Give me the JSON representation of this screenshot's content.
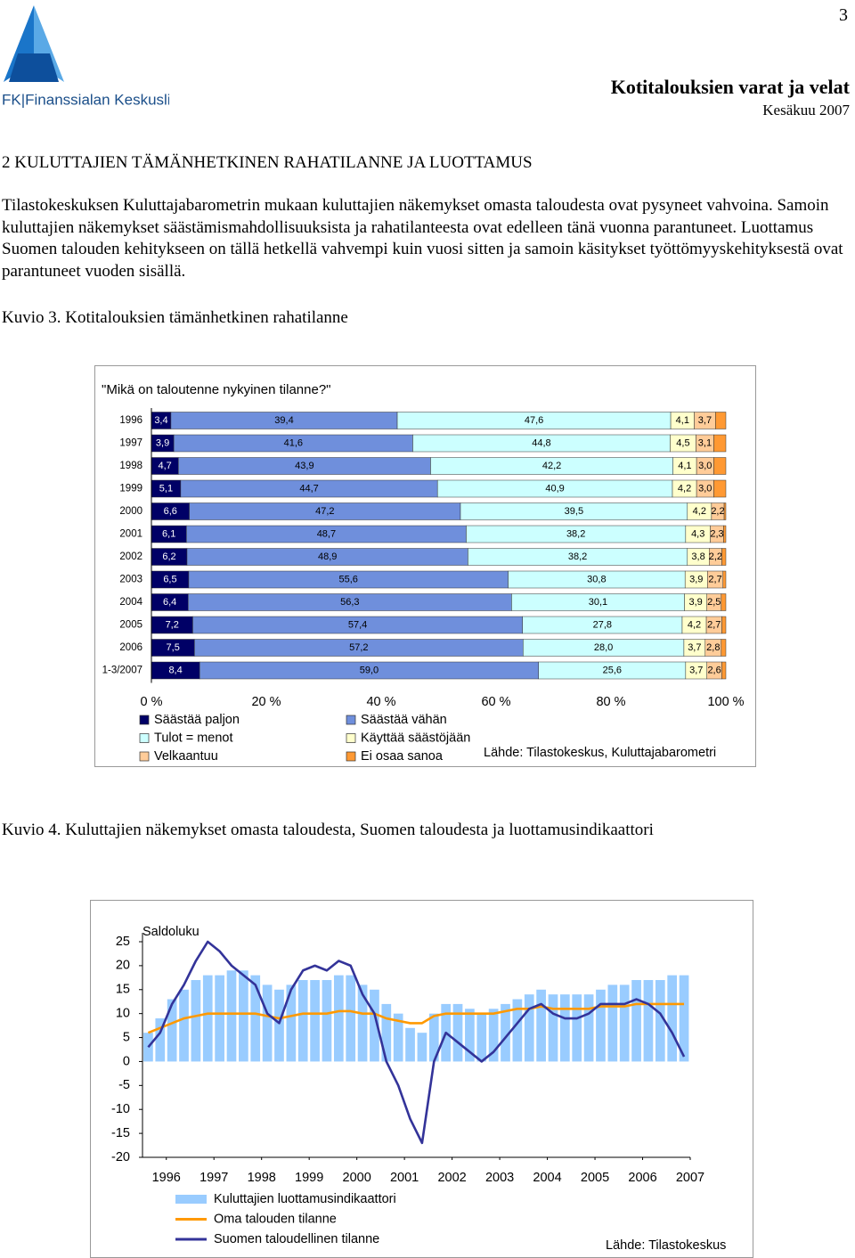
{
  "header": {
    "logo": "FK|Finanssialan Keskusliitto",
    "page_number": "3",
    "title": "Kotitalouksien varat ja velat",
    "date": "Kesäkuu 2007"
  },
  "section_heading": "2 KULUTTAJIEN TÄMÄNHETKINEN RAHATILANNE JA LUOTTAMUS",
  "paragraph": "Tilastokeskuksen Kuluttajabarometrin mukaan kuluttajien näkemykset omasta taloudesta ovat pysyneet vahvoina. Samoin kuluttajien näkemykset säästämismahdollisuuksista ja rahatilanteesta ovat edelleen tänä vuonna parantuneet. Luottamus Suomen talouden kehitykseen on tällä hetkellä vahvempi kuin vuosi sitten ja samoin käsitykset työttömyyskehityksestä ovat parantuneet vuoden sisällä.",
  "figure_captions": [
    "Kuvio 3. Kotitalouksien tämänhetkinen rahatilanne",
    "Kuvio 4. Kuluttajien näkemykset omasta taloudesta, Suomen taloudesta ja luottamusindikaattori"
  ],
  "chart_data": [
    {
      "type": "bar",
      "orientation": "horizontal",
      "stacked": true,
      "title": "\"Mikä on taloutenne nykyinen tilanne?\"",
      "categories": [
        "1996",
        "1997",
        "1998",
        "1999",
        "2000",
        "2001",
        "2002",
        "2003",
        "2004",
        "2005",
        "2006",
        "1-3/2007"
      ],
      "series": [
        {
          "name": "Säästää paljon",
          "color": "#000066",
          "values": [
            3.4,
            3.9,
            4.7,
            5.1,
            6.6,
            6.1,
            6.2,
            6.5,
            6.4,
            7.2,
            7.5,
            8.4
          ],
          "value_labels": [
            "3,4",
            "3,9",
            "4,7",
            "5,1",
            "6,6",
            "6,1",
            "6,2",
            "6,5",
            "6,4",
            "7,2",
            "7,5",
            "8,4"
          ]
        },
        {
          "name": "Säästää vähän",
          "color": "#6f8fdc",
          "values": [
            39.4,
            41.6,
            43.9,
            44.7,
            47.2,
            48.7,
            48.9,
            55.6,
            56.3,
            57.4,
            57.2,
            59.0
          ],
          "value_labels": [
            "39,4",
            "41,6",
            "43,9",
            "44,7",
            "47,2",
            "48,7",
            "48,9",
            "55,6",
            "56,3",
            "57,4",
            "57,2",
            "59,0"
          ]
        },
        {
          "name": "Tulot = menot",
          "color": "#ccffff",
          "values": [
            47.6,
            44.8,
            42.2,
            40.9,
            39.5,
            38.2,
            38.2,
            30.8,
            30.1,
            27.8,
            28.0,
            25.6
          ],
          "value_labels": [
            "47,6",
            "44,8",
            "42,2",
            "40,9",
            "39,5",
            "38,2",
            "38,2",
            "30,8",
            "30,1",
            "27,8",
            "28,0",
            "25,6"
          ]
        },
        {
          "name": "Käyttää säästöjään",
          "color": "#ffffcc",
          "values": [
            4.1,
            4.5,
            4.1,
            4.2,
            4.2,
            4.3,
            3.8,
            3.9,
            3.9,
            4.2,
            3.7,
            3.7
          ],
          "value_labels": [
            "4,1",
            "4,5",
            "4,1",
            "4,2",
            "4,2",
            "4,3",
            "3,8",
            "3,9",
            "3,9",
            "4,2",
            "3,7",
            "3,7"
          ]
        },
        {
          "name": "Velkaantuu",
          "color": "#ffcc99",
          "values": [
            3.7,
            3.1,
            3.0,
            3.0,
            2.2,
            2.3,
            2.2,
            2.7,
            2.5,
            2.7,
            2.8,
            2.6
          ],
          "value_labels": [
            "3,7",
            "3,1",
            "3,0",
            "3,0",
            "2,2",
            "2,3",
            "2,2",
            "2,7",
            "2,5",
            "2,7",
            "2,8",
            "2,6"
          ]
        },
        {
          "name": "Ei osaa sanoa",
          "color": "#ff9933",
          "values": [
            1.8,
            2.1,
            2.1,
            2.1,
            0.3,
            0.4,
            0.7,
            0.5,
            0.8,
            0.7,
            0.8,
            0.7
          ]
        }
      ],
      "xlim": [
        0,
        100
      ],
      "xticks": [
        {
          "value": 0,
          "label": "0 %"
        },
        {
          "value": 20,
          "label": "20 %"
        },
        {
          "value": 40,
          "label": "40 %"
        },
        {
          "value": 60,
          "label": "60 %"
        },
        {
          "value": 80,
          "label": "80 %"
        },
        {
          "value": 100,
          "label": "100 %"
        }
      ],
      "source": "Lähde: Tilastokeskus, Kuluttajabarometri"
    },
    {
      "type": "bar-line",
      "ylabel": "Saldoluku",
      "x": [
        1996,
        1996.25,
        1996.5,
        1996.75,
        1997,
        1997.25,
        1997.5,
        1997.75,
        1998,
        1998.25,
        1998.5,
        1998.75,
        1999,
        1999.25,
        1999.5,
        1999.75,
        2000,
        2000.25,
        2000.5,
        2000.75,
        2001,
        2001.25,
        2001.5,
        2001.75,
        2002,
        2002.25,
        2002.5,
        2002.75,
        2003,
        2003.25,
        2003.5,
        2003.75,
        2004,
        2004.25,
        2004.5,
        2004.75,
        2005,
        2005.25,
        2005.5,
        2005.75,
        2006,
        2006.25,
        2006.5,
        2006.75,
        2007,
        2007.25
      ],
      "series": [
        {
          "name": "Kuluttajien luottamusindikaattori",
          "type": "bar",
          "color": "#99ccff",
          "values": [
            6,
            9,
            13,
            15,
            17,
            18,
            18,
            19,
            19,
            18,
            16,
            15,
            16,
            17,
            17,
            17,
            18,
            18,
            16,
            15,
            12,
            10,
            7,
            6,
            10,
            12,
            12,
            11,
            10,
            11,
            12,
            13,
            14,
            15,
            14,
            14,
            14,
            14,
            15,
            16,
            16,
            17,
            17,
            17,
            18,
            18
          ]
        },
        {
          "name": "Oma talouden tilanne",
          "type": "line",
          "color": "#ff9900",
          "values": [
            6,
            7,
            8,
            9,
            9.5,
            10,
            10,
            10,
            10,
            10,
            9.5,
            9,
            9.5,
            10,
            10,
            10,
            10.5,
            10.5,
            10,
            10,
            9,
            8.5,
            8,
            8,
            9.5,
            10,
            10,
            10,
            10,
            10,
            10.5,
            11,
            11,
            11.5,
            11,
            11,
            11,
            11,
            11.5,
            11.5,
            11.5,
            12,
            12,
            12,
            12,
            12
          ]
        },
        {
          "name": "Suomen taloudellinen tilanne",
          "type": "line",
          "color": "#333399",
          "values": [
            3,
            6,
            12,
            16,
            21,
            25,
            23,
            20,
            18,
            16,
            10,
            8,
            15,
            19,
            20,
            19,
            21,
            20,
            14,
            10,
            0,
            -5,
            -12,
            -17,
            0,
            6,
            4,
            2,
            0,
            2,
            5,
            8,
            11,
            12,
            10,
            9,
            9,
            10,
            12,
            12,
            12,
            13,
            12,
            10,
            6,
            1
          ]
        }
      ],
      "xlim": [
        1996,
        2007.5
      ],
      "xticks": [
        {
          "value": 1996.5,
          "label": "1996"
        },
        {
          "value": 1997.5,
          "label": "1997"
        },
        {
          "value": 1998.5,
          "label": "1998"
        },
        {
          "value": 1999.5,
          "label": "1999"
        },
        {
          "value": 2000.5,
          "label": "2000"
        },
        {
          "value": 2001.5,
          "label": "2001"
        },
        {
          "value": 2002.5,
          "label": "2002"
        },
        {
          "value": 2003.5,
          "label": "2003"
        },
        {
          "value": 2004.5,
          "label": "2004"
        },
        {
          "value": 2005.5,
          "label": "2005"
        },
        {
          "value": 2006.5,
          "label": "2006"
        },
        {
          "value": 2007.5,
          "label": "2007"
        }
      ],
      "ylim": [
        -20,
        25
      ],
      "yticks": [
        -20,
        -15,
        -10,
        -5,
        0,
        5,
        10,
        15,
        20,
        25
      ],
      "source": "Lähde: Tilastokeskus"
    }
  ]
}
